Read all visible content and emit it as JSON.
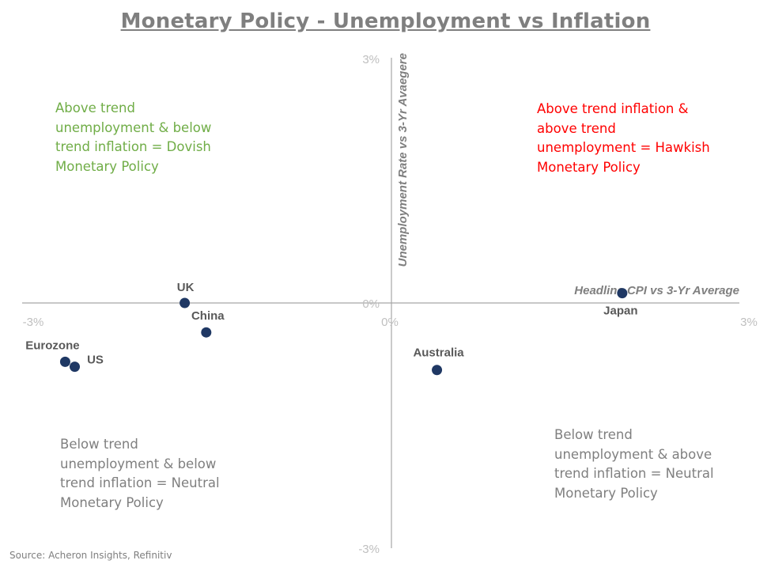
{
  "title": "Monetary Policy - Unemployment vs Inflation",
  "source": "Source: Acheron Insights, Refinitiv",
  "quadrant_notes": {
    "top_left": [
      "Above trend",
      "unemployment & below",
      "trend inflation = Dovish",
      "Monetary Policy"
    ],
    "top_right": [
      "Above trend inflation &",
      "above trend",
      "unemployment = Hawkish",
      "Monetary Policy"
    ],
    "bottom_left": [
      "Below trend",
      "unemployment & below",
      "trend inflation = Neutral",
      "Monetary Policy"
    ],
    "bottom_right": [
      "Below trend",
      "unemployment & above",
      "trend inflation = Neutral",
      "Monetary Policy"
    ]
  },
  "colors": {
    "title": "#7f7f7f",
    "dovish": "#70ad47",
    "hawkish": "#ff0000",
    "neutral": "#7f7f7f",
    "marker": "#1f3864",
    "point_label": "#595959",
    "axis": "#a6a6a6",
    "tick": "#bfbfbf",
    "axis_title": "#7f7f7f"
  },
  "chart_data": {
    "type": "scatter",
    "xlabel": "Headline CPI vs 3-Yr Average",
    "ylabel": "Unemployment Rate vs 3-Yr Avaegere",
    "xlim": [
      -3,
      3
    ],
    "ylim": [
      -3,
      3
    ],
    "x_ticks": [
      "-3%",
      "0%",
      "3%"
    ],
    "y_ticks": [
      "3%",
      "0%",
      "-3%"
    ],
    "grid": false,
    "points": [
      {
        "label": "UK",
        "x": -1.64,
        "y": 0.0
      },
      {
        "label": "China",
        "x": -1.46,
        "y": -0.36
      },
      {
        "label": "Eurozone",
        "x": -2.64,
        "y": -0.72
      },
      {
        "label": "US",
        "x": -2.56,
        "y": -0.78
      },
      {
        "label": "Australia",
        "x": 0.47,
        "y": -0.82
      },
      {
        "label": "Japan",
        "x": 2.02,
        "y": 0.12
      }
    ]
  }
}
